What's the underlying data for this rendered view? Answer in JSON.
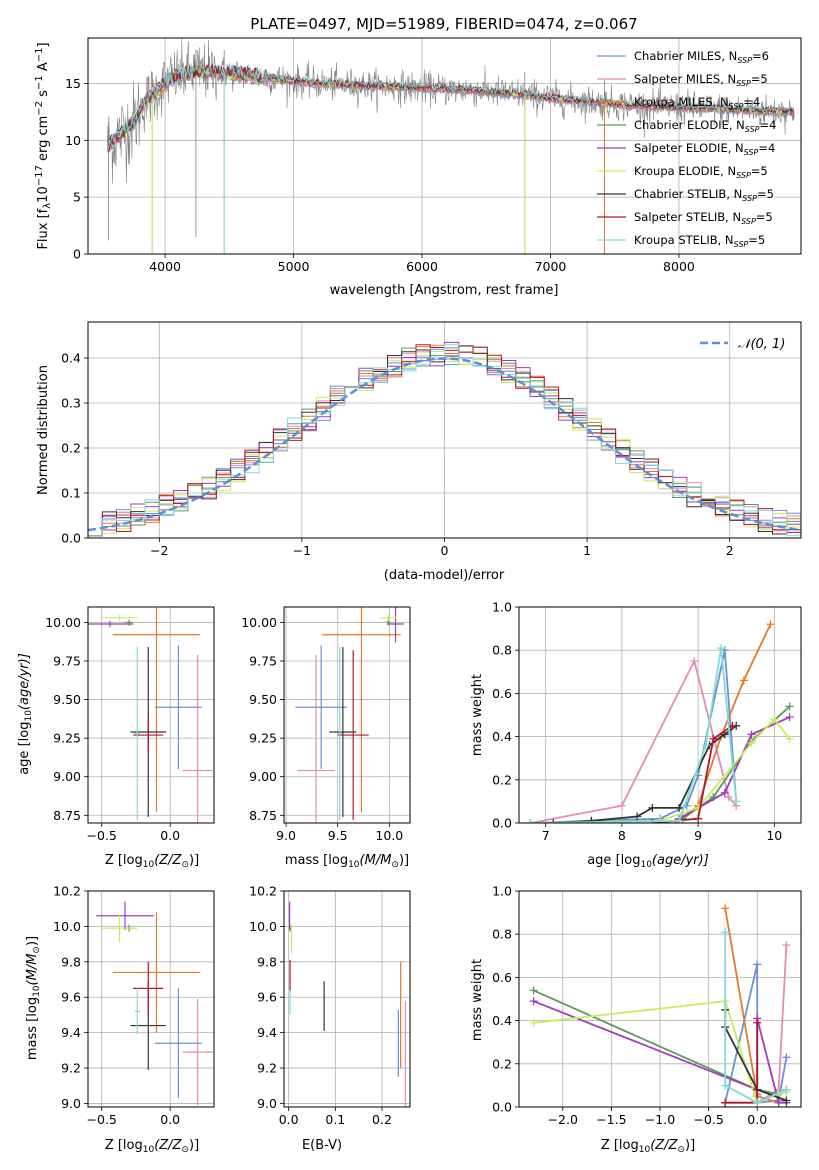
{
  "colors": {
    "chabrier_miles": "#6d8fd6",
    "salpeter_miles": "#e68ab8",
    "kroupa_miles": "#e37a2a",
    "chabrier_elodie": "#5c9a5c",
    "salpeter_elodie": "#a23bbd",
    "kroupa_elodie": "#cbec58",
    "chabrier_stelib": "#333333",
    "salpeter_stelib": "#b3172e",
    "kroupa_stelib": "#7fdadb",
    "data_gray": "#808080",
    "normal_curve": "#5b8fd8"
  },
  "chart_data": [
    {
      "id": "spectrum",
      "type": "line",
      "title": "PLATE=0497, MJD=51989, FIBERID=0474, z=0.067",
      "xlabel": "wavelength [Angstrom, rest frame]",
      "ylabel": "Flux [f",
      "ylabel_sub": "λ",
      "ylabel_rest": "10",
      "ylabel_sup1": "−17",
      "ylabel_end": " erg cm",
      "ylabel_sup2": "−2",
      "ylabel_s": " s",
      "ylabel_sup3": "−1",
      "ylabel_A": " A",
      "ylabel_sup4": "−1",
      "ylabel_close": "]",
      "xlim": [
        3400,
        8950
      ],
      "ylim": [
        0,
        19
      ],
      "xticks": [
        4000,
        5000,
        6000,
        7000,
        8000
      ],
      "yticks": [
        0,
        5,
        10,
        15
      ],
      "legend": [
        {
          "lib": "Chabrier MILES",
          "n": "6"
        },
        {
          "lib": "Salpeter MILES",
          "n": "5"
        },
        {
          "lib": "Kroupa MILES",
          "n": "4"
        },
        {
          "lib": "Chabrier ELODIE",
          "n": "4"
        },
        {
          "lib": "Salpeter ELODIE",
          "n": "4"
        },
        {
          "lib": "Kroupa ELODIE",
          "n": "5"
        },
        {
          "lib": "Chabrier STELIB",
          "n": "5"
        },
        {
          "lib": "Salpeter STELIB",
          "n": "5"
        },
        {
          "lib": "Kroupa STELIB",
          "n": "5"
        }
      ],
      "legend_prefix": "N",
      "legend_sub": "SSP",
      "continuum": {
        "x": [
          3550,
          3650,
          3750,
          3850,
          3950,
          4050,
          4200,
          4400,
          4600,
          4800,
          5000,
          5200,
          5400,
          5600,
          5800,
          6000,
          6200,
          6400,
          6600,
          6800,
          7000,
          7200,
          7400,
          7600,
          7800,
          8000,
          8200,
          8400,
          8600,
          8900
        ],
        "y": [
          9.5,
          10.5,
          11.5,
          13.5,
          14.5,
          15.5,
          16.0,
          16.0,
          15.8,
          15.5,
          15.2,
          15.0,
          14.9,
          14.8,
          14.7,
          14.6,
          14.5,
          14.4,
          14.2,
          14.0,
          13.7,
          13.5,
          13.3,
          13.1,
          13.0,
          12.9,
          12.8,
          12.7,
          12.6,
          12.5
        ]
      },
      "data_dips": [
        {
          "x": 3560,
          "y": 1.2
        },
        {
          "x": 3900,
          "y": 0.0
        },
        {
          "x": 4460,
          "y": 0.0
        },
        {
          "x": 4240,
          "y": 1.5
        },
        {
          "x": 6800,
          "y": 0.0
        },
        {
          "x": 7420,
          "y": 0.0
        }
      ]
    },
    {
      "id": "residuals",
      "type": "histogram",
      "xlabel": "(data-model)/error",
      "ylabel": "Normed distribution",
      "xlim": [
        -2.5,
        2.5
      ],
      "ylim": [
        0,
        0.48
      ],
      "xticks": [
        -2,
        -1,
        0,
        1,
        2
      ],
      "yticks": [
        0.0,
        0.1,
        0.2,
        0.3,
        0.4
      ],
      "legend": "𝒩(0, 1)",
      "bin_width": 0.1
    },
    {
      "id": "age_vs_Z",
      "type": "scatter",
      "xlabel": "Z [log",
      "xlabel_sub": "10",
      "xlabel_end": "(Z/Z",
      "xlabel_sun": "⊙",
      "xlabel_close": ")]",
      "ylabel": "age  [log",
      "ylabel_sub": "10",
      "ylabel_end": "(age/yr)]",
      "xlim": [
        -0.6,
        0.32
      ],
      "ylim": [
        8.7,
        10.1
      ],
      "xticks": [
        -0.5,
        0.0
      ],
      "yticks": [
        8.75,
        9.0,
        9.25,
        9.5,
        9.75,
        10.0
      ],
      "points": [
        {
          "c": "chabrier_miles",
          "x": 0.06,
          "xe": 0.17,
          "y": 9.45,
          "ye": 0.4
        },
        {
          "c": "salpeter_miles",
          "x": 0.2,
          "xe": 0.11,
          "y": 9.04,
          "ye": 0.75
        },
        {
          "c": "kroupa_miles",
          "x": -0.1,
          "xe": 0.32,
          "y": 9.92,
          "ye": 1.15
        },
        {
          "c": "chabrier_elodie",
          "x": -0.3,
          "xe": 0.03,
          "y": 10.0,
          "ye": 0.02
        },
        {
          "c": "salpeter_elodie",
          "x": -0.44,
          "xe": 0.17,
          "y": 9.99,
          "ye": 0.02
        },
        {
          "c": "kroupa_elodie",
          "x": -0.37,
          "xe": 0.13,
          "y": 10.03,
          "ye": 0.02
        },
        {
          "c": "chabrier_stelib",
          "x": -0.16,
          "xe": 0.13,
          "y": 9.29,
          "ye": 0.55
        },
        {
          "c": "salpeter_stelib",
          "x": -0.16,
          "xe": 0.11,
          "y": 9.27,
          "ye": 0.11
        },
        {
          "c": "kroupa_stelib",
          "x": -0.24,
          "xe": 0.02,
          "y": 9.28,
          "ye": 0.56
        }
      ]
    },
    {
      "id": "age_vs_mass",
      "type": "scatter",
      "xlabel": "mass [log",
      "xlabel_sub": "10",
      "xlabel_end": "(M/M",
      "xlabel_sun": "⊙",
      "xlabel_close": ")]",
      "xlim": [
        8.98,
        10.2
      ],
      "ylim": [
        8.7,
        10.1
      ],
      "xticks": [
        9.0,
        9.5,
        10.0
      ],
      "yticks": [
        8.75,
        9.0,
        9.25,
        9.5,
        9.75,
        10.0
      ],
      "points": [
        {
          "c": "chabrier_miles",
          "x": 9.34,
          "xe": 0.25,
          "y": 9.45,
          "ye": 0.4
        },
        {
          "c": "salpeter_miles",
          "x": 9.29,
          "xe": 0.18,
          "y": 9.04,
          "ye": 0.75
        },
        {
          "c": "kroupa_miles",
          "x": 9.73,
          "xe": 0.38,
          "y": 9.92,
          "ye": 1.15
        },
        {
          "c": "chabrier_elodie",
          "x": 9.99,
          "xe": 0.02,
          "y": 10.0,
          "ye": 0.02
        },
        {
          "c": "salpeter_elodie",
          "x": 10.06,
          "xe": 0.08,
          "y": 9.99,
          "ye": 0.12
        },
        {
          "c": "kroupa_elodie",
          "x": 9.99,
          "xe": 0.08,
          "y": 10.03,
          "ye": 0.02
        },
        {
          "c": "chabrier_stelib",
          "x": 9.55,
          "xe": 0.13,
          "y": 9.29,
          "ye": 0.55
        },
        {
          "c": "salpeter_stelib",
          "x": 9.65,
          "xe": 0.15,
          "y": 9.27,
          "ye": 0.55
        },
        {
          "c": "kroupa_stelib",
          "x": 9.52,
          "xe": 0.02,
          "y": 9.28,
          "ye": 0.56
        }
      ]
    },
    {
      "id": "weight_vs_age",
      "type": "line",
      "xlabel": "age  [log",
      "xlabel_sub": "10",
      "xlabel_end": "(age/yr)]",
      "ylabel": "mass weight",
      "xlim": [
        6.65,
        10.35
      ],
      "ylim": [
        0,
        1
      ],
      "xticks": [
        7,
        8,
        9,
        10
      ],
      "yticks": [
        0.0,
        0.2,
        0.4,
        0.6,
        0.8,
        1.0
      ],
      "series": [
        {
          "c": "chabrier_miles",
          "x": [
            6.8,
            7.6,
            8.5,
            8.85,
            9.0,
            9.35,
            9.5
          ],
          "y": [
            0.0,
            0.01,
            0.02,
            0.08,
            0.22,
            0.8,
            0.1
          ]
        },
        {
          "c": "salpeter_miles",
          "x": [
            6.8,
            8.0,
            8.95,
            9.4,
            9.5
          ],
          "y": [
            0.0,
            0.08,
            0.75,
            0.12,
            0.08
          ]
        },
        {
          "c": "kroupa_miles",
          "x": [
            8.7,
            9.0,
            9.3,
            9.6,
            9.95
          ],
          "y": [
            0.0,
            0.08,
            0.4,
            0.66,
            0.92
          ]
        },
        {
          "c": "chabrier_elodie",
          "x": [
            8.8,
            9.2,
            9.7,
            10.2
          ],
          "y": [
            0.02,
            0.12,
            0.38,
            0.54
          ]
        },
        {
          "c": "salpeter_elodie",
          "x": [
            8.75,
            9.35,
            9.7,
            10.2
          ],
          "y": [
            0.02,
            0.14,
            0.41,
            0.49
          ]
        },
        {
          "c": "kroupa_elodie",
          "x": [
            6.8,
            8.5,
            9.0,
            9.7,
            10.0,
            10.2
          ],
          "y": [
            0.0,
            0.01,
            0.07,
            0.37,
            0.48,
            0.39
          ]
        },
        {
          "c": "chabrier_stelib",
          "x": [
            7.1,
            7.6,
            8.2,
            8.4,
            8.75,
            9.15,
            9.35,
            9.5
          ],
          "y": [
            0.0,
            0.01,
            0.03,
            0.07,
            0.07,
            0.36,
            0.41,
            0.45
          ]
        },
        {
          "c": "salpeter_stelib",
          "x": [
            8.4,
            9.0,
            9.2,
            9.45
          ],
          "y": [
            0.0,
            0.02,
            0.39,
            0.45
          ]
        },
        {
          "c": "kroupa_stelib",
          "x": [
            6.8,
            8.75,
            9.1,
            9.3,
            9.5
          ],
          "y": [
            0.0,
            0.01,
            0.36,
            0.81,
            0.1
          ]
        }
      ]
    },
    {
      "id": "mass_vs_Z",
      "type": "scatter",
      "xlabel": "Z [log",
      "xlabel_sub": "10",
      "xlabel_end": "(Z/Z",
      "xlabel_sun": "⊙",
      "xlabel_close": ")]",
      "ylabel": "mass [log",
      "ylabel_sub": "10",
      "ylabel_end": "(M/M",
      "ylabel_sun": "⊙",
      "ylabel_close": ")]",
      "xlim": [
        -0.6,
        0.32
      ],
      "ylim": [
        8.98,
        10.2
      ],
      "xticks": [
        -0.5,
        0.0
      ],
      "yticks": [
        9.0,
        9.2,
        9.4,
        9.6,
        9.8,
        10.0,
        10.2
      ],
      "points": [
        {
          "c": "chabrier_miles",
          "x": 0.06,
          "xe": 0.17,
          "y": 9.34,
          "ye": 0.31
        },
        {
          "c": "salpeter_miles",
          "x": 0.2,
          "xe": 0.11,
          "y": 9.29,
          "ye": 0.3
        },
        {
          "c": "kroupa_miles",
          "x": -0.1,
          "xe": 0.32,
          "y": 9.74,
          "ye": 0.34
        },
        {
          "c": "chabrier_elodie",
          "x": -0.3,
          "xe": 0.03,
          "y": 9.99,
          "ye": 0.02
        },
        {
          "c": "salpeter_elodie",
          "x": -0.33,
          "xe": 0.21,
          "y": 10.06,
          "ye": 0.08
        },
        {
          "c": "kroupa_elodie",
          "x": -0.37,
          "xe": 0.13,
          "y": 9.99,
          "ye": 0.08
        },
        {
          "c": "chabrier_stelib",
          "x": -0.16,
          "xe": 0.13,
          "y": 9.44,
          "ye": 0.25
        },
        {
          "c": "salpeter_stelib",
          "x": -0.16,
          "xe": 0.11,
          "y": 9.65,
          "ye": 0.15
        },
        {
          "c": "kroupa_stelib",
          "x": -0.24,
          "xe": 0.02,
          "y": 9.52,
          "ye": 0.13
        }
      ]
    },
    {
      "id": "mass_vs_ebv",
      "type": "scatter",
      "xlabel": "E(B-V)",
      "xlim": [
        -0.01,
        0.26
      ],
      "ylim": [
        8.98,
        10.2
      ],
      "xticks": [
        0.0,
        0.1,
        0.2
      ],
      "yticks": [
        9.0,
        9.2,
        9.4,
        9.6,
        9.8,
        10.0,
        10.2
      ],
      "points": [
        {
          "c": "chabrier_miles",
          "x": 0.235,
          "xe": 0.0,
          "y": 9.34,
          "ye": 0.19
        },
        {
          "c": "salpeter_miles",
          "x": 0.25,
          "xe": 0.0,
          "y": 9.28,
          "ye": 0.3
        },
        {
          "c": "kroupa_miles",
          "x": 0.24,
          "xe": 0.0,
          "y": 9.5,
          "ye": 0.3
        },
        {
          "c": "chabrier_elodie",
          "x": 0.003,
          "xe": 0.0,
          "y": 9.99,
          "ye": 0.02
        },
        {
          "c": "salpeter_elodie",
          "x": 0.002,
          "xe": 0.0,
          "y": 10.06,
          "ye": 0.08
        },
        {
          "c": "kroupa_elodie",
          "x": 0.006,
          "xe": 0.0,
          "y": 9.93,
          "ye": 0.08
        },
        {
          "c": "chabrier_stelib",
          "x": 0.076,
          "xe": 0.0,
          "y": 9.55,
          "ye": 0.14
        },
        {
          "c": "salpeter_stelib",
          "x": 0.003,
          "xe": 0.0,
          "y": 9.72,
          "ye": 0.09
        },
        {
          "c": "kroupa_stelib",
          "x": 0.003,
          "xe": 0.0,
          "y": 9.57,
          "ye": 0.07
        }
      ]
    },
    {
      "id": "weight_vs_Z",
      "type": "line",
      "xlabel": "Z [log",
      "xlabel_sub": "10",
      "xlabel_end": "(Z/Z",
      "xlabel_sun": "⊙",
      "xlabel_close": ")]",
      "ylabel": "mass weight",
      "xlim": [
        -2.45,
        0.45
      ],
      "ylim": [
        0,
        1
      ],
      "xticks": [
        -2.0,
        -1.5,
        -1.0,
        -0.5,
        0.0
      ],
      "yticks": [
        0.0,
        0.2,
        0.4,
        0.6,
        0.8,
        1.0
      ],
      "xtick_labels": [
        "−2.0",
        "−1.5",
        "−1.0",
        "−0.5",
        "0.0"
      ],
      "series": [
        {
          "c": "chabrier_miles",
          "x": [
            -0.33,
            0.0,
            0.0,
            0.0,
            0.22,
            0.3
          ],
          "y": [
            0.02,
            0.66,
            0.06,
            0.02,
            0.03,
            0.23
          ]
        },
        {
          "c": "salpeter_miles",
          "x": [
            -0.33,
            0.0,
            0.22,
            0.3
          ],
          "y": [
            0.02,
            0.02,
            0.08,
            0.75
          ]
        },
        {
          "c": "kroupa_miles",
          "x": [
            -0.33,
            0.0,
            0.22,
            0.3
          ],
          "y": [
            0.92,
            0.05,
            0.02,
            0.02
          ]
        },
        {
          "c": "chabrier_elodie",
          "x": [
            -2.3,
            0.0,
            0.22,
            0.3
          ],
          "y": [
            0.54,
            0.08,
            0.06,
            0.08
          ]
        },
        {
          "c": "salpeter_elodie",
          "x": [
            -2.3,
            0.0,
            0.0,
            0.22,
            0.3
          ],
          "y": [
            0.49,
            0.08,
            0.41,
            0.02,
            0.02
          ]
        },
        {
          "c": "kroupa_elodie",
          "x": [
            -2.3,
            -0.33,
            0.0,
            0.22,
            0.3
          ],
          "y": [
            0.39,
            0.49,
            0.02,
            0.06,
            0.07
          ]
        },
        {
          "c": "chabrier_stelib",
          "x": [
            -0.33,
            -0.33,
            0.0,
            0.3
          ],
          "y": [
            0.45,
            0.37,
            0.08,
            0.03
          ]
        },
        {
          "c": "salpeter_stelib",
          "x": [
            -0.33,
            0.0,
            0.0
          ],
          "y": [
            0.02,
            0.02,
            0.39
          ]
        },
        {
          "c": "kroupa_stelib",
          "x": [
            -0.33,
            -0.33,
            0.0,
            0.3
          ],
          "y": [
            0.81,
            0.1,
            0.02,
            0.08
          ]
        }
      ]
    }
  ]
}
